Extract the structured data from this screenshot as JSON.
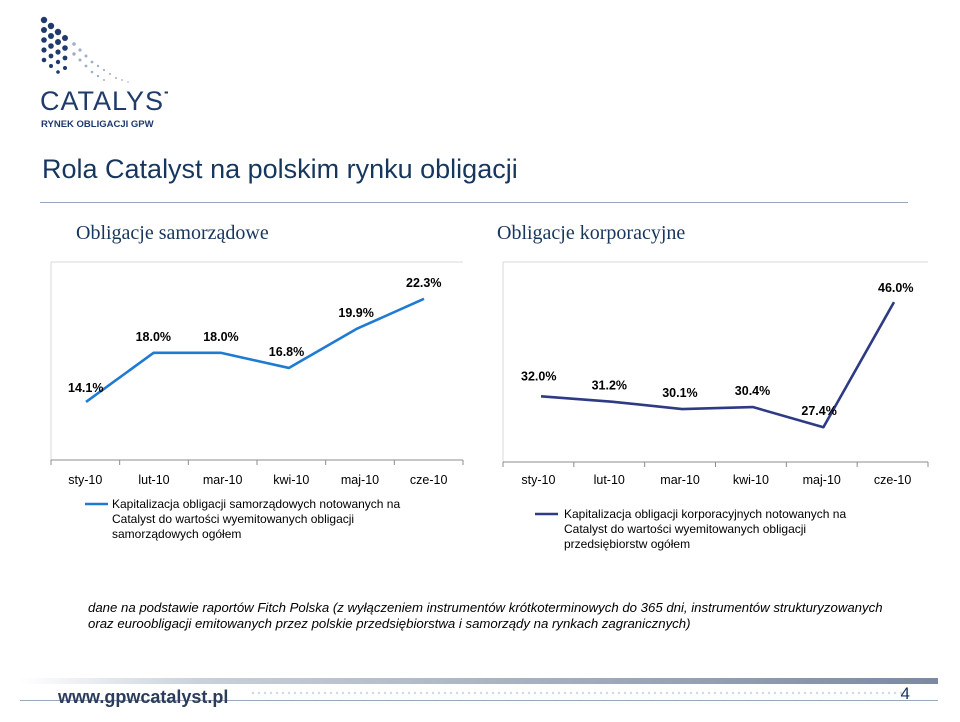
{
  "logo": {
    "name": "CATALYST",
    "tagline": "RYNEK OBLIGACJI GPW"
  },
  "title": "Rola Catalyst na polskim rynku obligacji",
  "subtitles": {
    "left": "Obligacje samorządowe",
    "right": "Obligacje korporacyjne"
  },
  "chart_data": [
    {
      "type": "line",
      "categories": [
        "sty-10",
        "lut-10",
        "mar-10",
        "kwi-10",
        "maj-10",
        "cze-10"
      ],
      "series": [
        {
          "name": "Kapitalizacja obligacji samorządowych notowanych na Catalyst do wartości wyemitowanych obligacji samorządowych ogółem",
          "values": [
            14.1,
            18.0,
            18.0,
            16.8,
            19.9,
            22.3
          ],
          "color": "#1f7bd1"
        }
      ],
      "data_labels": [
        "14.1%",
        "18.0%",
        "18.0%",
        "16.8%",
        "19.9%",
        "22.3%"
      ],
      "legend_lines": [
        "Kapitalizacja obligacji samorządowych notowanych na",
        "Catalyst do wartości wyemitowanych obligacji",
        "samorządowych ogółem"
      ],
      "legend_position": "bottom",
      "ylim": [
        12.5,
        23.0
      ]
    },
    {
      "type": "line",
      "categories": [
        "sty-10",
        "lut-10",
        "mar-10",
        "kwi-10",
        "maj-10",
        "cze-10"
      ],
      "series": [
        {
          "name": "Kapitalizacja obligacji korporacyjnych notowanych na Catalyst do wartości wyemitowanych obligacji przedsiębiorstw ogółem",
          "values": [
            32.0,
            31.2,
            30.1,
            30.4,
            27.4,
            46.0
          ],
          "color": "#2e3a84"
        }
      ],
      "data_labels": [
        "32.0%",
        "31.2%",
        "30.1%",
        "30.4%",
        "27.4%",
        "46.0%"
      ],
      "legend_lines": [
        "Kapitalizacja obligacji korporacyjnych notowanych na",
        "Catalyst do wartości wyemitowanych obligacji",
        "przedsiębiorstw ogółem"
      ],
      "legend_position": "bottom",
      "ylim": [
        25.5,
        47.5
      ]
    }
  ],
  "note": "dane na podstawie raportów Fitch Polska (z wyłączeniem instrumentów krótkoterminowych do 365 dni, instrumentów strukturyzowanych oraz euroobligacji emitowanych przez polskie przedsiębiorstwa i samorządy na rynkach zagranicznych)",
  "footer": {
    "url": "www.gpwcatalyst.pl",
    "page": "4"
  }
}
